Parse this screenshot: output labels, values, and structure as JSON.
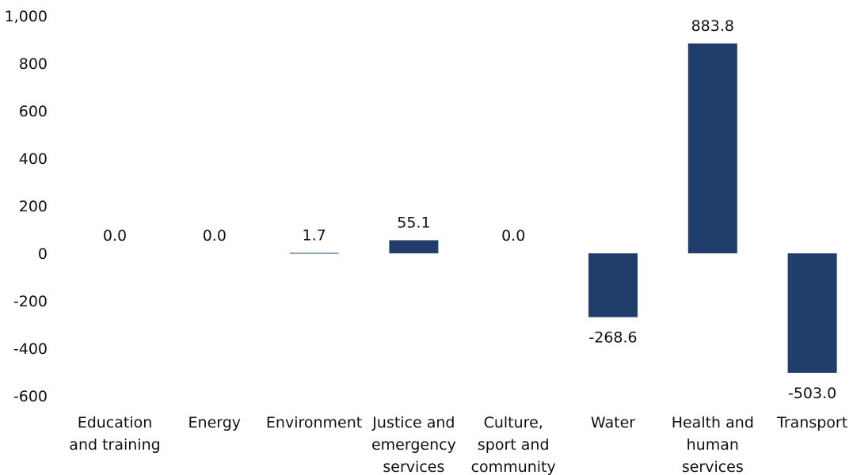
{
  "chart_data": {
    "type": "bar",
    "title": "",
    "xlabel": "",
    "ylabel": "",
    "ylim": [
      -600,
      1000
    ],
    "yticks": [
      -600,
      -400,
      -200,
      0,
      200,
      400,
      600,
      800,
      1000
    ],
    "ytick_labels": [
      "-600",
      "-400",
      "-200",
      "0",
      "200",
      "400",
      "600",
      "800",
      "1,000"
    ],
    "categories": [
      [
        "Education",
        "and training"
      ],
      [
        "Energy"
      ],
      [
        "Environment"
      ],
      [
        "Justice and",
        "emergency",
        "services"
      ],
      [
        "Culture,",
        "sport and",
        "community"
      ],
      [
        "Water"
      ],
      [
        "Health and",
        "human",
        "services"
      ],
      [
        "Transport"
      ]
    ],
    "values": [
      0.0,
      0.0,
      1.7,
      55.1,
      0.0,
      -268.6,
      883.8,
      -503.0
    ],
    "value_labels": [
      "0.0",
      "0.0",
      "1.7",
      "55.1",
      "0.0",
      "-268.6",
      "883.8",
      "-503.0"
    ],
    "bar_color": "#203d6b",
    "grid": false,
    "legend": "none"
  }
}
